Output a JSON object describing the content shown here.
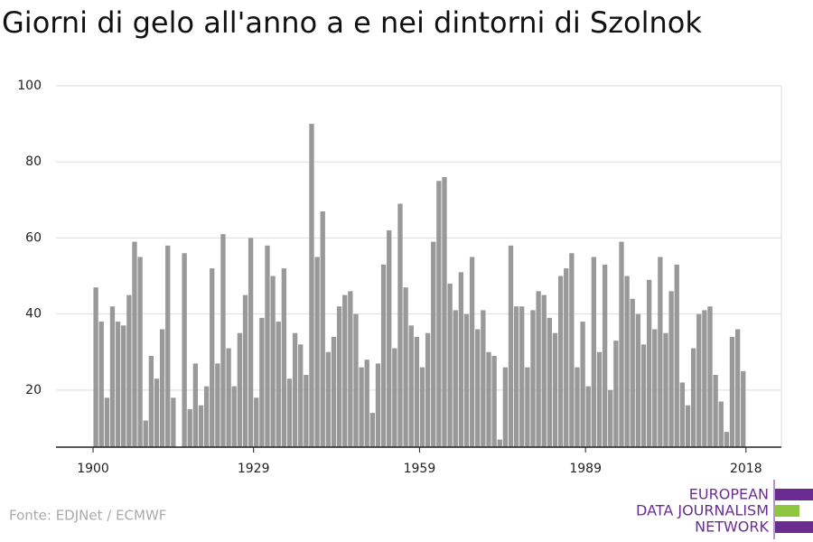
{
  "chart_data": {
    "type": "bar",
    "title": "Giorni di gelo all'anno a e nei dintorni di Szolnok",
    "source": "Fonte: EDJNet / ECMWF",
    "logo": [
      "EUROPEAN",
      "DATA JOURNALISM",
      "NETWORK"
    ],
    "color": "#999999",
    "x": [
      1900,
      1901,
      1902,
      1903,
      1904,
      1905,
      1906,
      1907,
      1908,
      1909,
      1910,
      1911,
      1912,
      1913,
      1914,
      1915,
      1916,
      1917,
      1918,
      1919,
      1920,
      1921,
      1922,
      1923,
      1924,
      1925,
      1926,
      1927,
      1928,
      1929,
      1930,
      1931,
      1932,
      1933,
      1934,
      1935,
      1936,
      1937,
      1938,
      1939,
      1940,
      1941,
      1942,
      1943,
      1944,
      1945,
      1946,
      1947,
      1948,
      1949,
      1950,
      1951,
      1952,
      1953,
      1954,
      1955,
      1956,
      1957,
      1958,
      1959,
      1960,
      1961,
      1962,
      1963,
      1964,
      1965,
      1966,
      1967,
      1968,
      1969,
      1970,
      1971,
      1972,
      1973,
      1974,
      1975,
      1976,
      1977,
      1978,
      1979,
      1980,
      1981,
      1982,
      1983,
      1984,
      1985,
      1986,
      1987,
      1988,
      1989,
      1990,
      1991,
      1992,
      1993,
      1994,
      1995,
      1996,
      1997,
      1998,
      1999,
      2000,
      2001,
      2002,
      2003,
      2004,
      2005,
      2006,
      2007,
      2008,
      2009,
      2010,
      2011,
      2012,
      2013,
      2014,
      2015,
      2016,
      2017
    ],
    "values": [
      47,
      38,
      18,
      42,
      38,
      37,
      45,
      59,
      55,
      12,
      29,
      23,
      36,
      58,
      18,
      5,
      56,
      15,
      27,
      16,
      21,
      52,
      27,
      61,
      31,
      21,
      35,
      45,
      60,
      18,
      39,
      58,
      50,
      38,
      52,
      23,
      35,
      32,
      24,
      90,
      55,
      67,
      30,
      34,
      42,
      45,
      46,
      40,
      26,
      28,
      14,
      27,
      53,
      62,
      31,
      69,
      47,
      37,
      34,
      26,
      35,
      59,
      75,
      76,
      48,
      41,
      51,
      40,
      55,
      36,
      41,
      30,
      29,
      7,
      26,
      58,
      42,
      42,
      26,
      41,
      46,
      45,
      39,
      35,
      50,
      52,
      56,
      26,
      38,
      21,
      55,
      30,
      53,
      20,
      33,
      59,
      50,
      44,
      40,
      32,
      49,
      36,
      55,
      35,
      46,
      53,
      22,
      16,
      31,
      40,
      41,
      42,
      24,
      17,
      9,
      34,
      36,
      25
    ],
    "xlim": [
      1893.3,
      2024.4
    ],
    "xticks": [
      1900,
      1929,
      1959,
      1989,
      2018
    ],
    "ylim": [
      5,
      100
    ],
    "yticks": [
      20,
      40,
      60,
      80,
      100
    ],
    "grid": true
  }
}
